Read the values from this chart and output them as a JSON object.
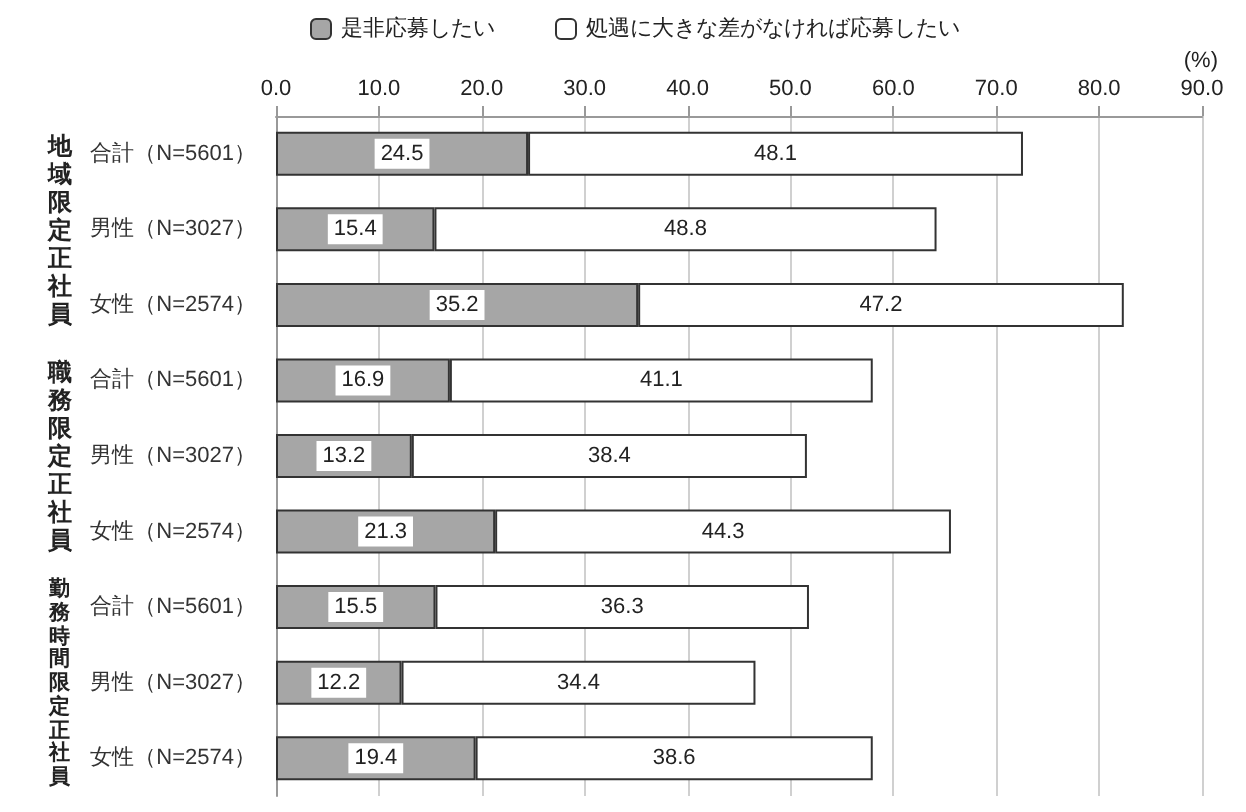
{
  "chart_data": {
    "type": "bar",
    "orientation": "horizontal",
    "stacked": true,
    "data_labels": true,
    "grid": "x",
    "legend": "top",
    "xlabel": "(%)",
    "categories": [
      "合計（N=5601）",
      "男性（N=3027）",
      "女性（N=2574）",
      "合計（N=5601）",
      "男性（N=3027）",
      "女性（N=2574）",
      "合計（N=5601）",
      "男性（N=3027）",
      "女性（N=2574）"
    ],
    "annotations": [
      "地域限定正社員",
      "職務限定正社員",
      "勤務時間限定正社員"
    ],
    "xlim": [
      0,
      90
    ],
    "xticks": [
      {
        "value": 0,
        "label": "0.0"
      },
      {
        "value": 10,
        "label": "10.0"
      },
      {
        "value": 20,
        "label": "20.0"
      },
      {
        "value": 30,
        "label": "30.0"
      },
      {
        "value": 40,
        "label": "40.0"
      },
      {
        "value": 50,
        "label": "50.0"
      },
      {
        "value": 60,
        "label": "60.0"
      },
      {
        "value": 70,
        "label": "70.0"
      },
      {
        "value": 80,
        "label": "80.0"
      },
      {
        "value": 90,
        "label": "90.0"
      }
    ],
    "series": [
      {
        "name": "是非応募したい",
        "color": "#a6a6a6",
        "values": [
          24.5,
          15.4,
          35.2,
          16.9,
          13.2,
          21.3,
          15.5,
          12.2,
          19.4
        ]
      },
      {
        "name": "処遇に大きな差がなければ応募したい",
        "color": "#ffffff",
        "values": [
          48.1,
          48.8,
          47.2,
          41.1,
          38.4,
          44.3,
          36.3,
          34.4,
          38.6
        ]
      }
    ]
  }
}
